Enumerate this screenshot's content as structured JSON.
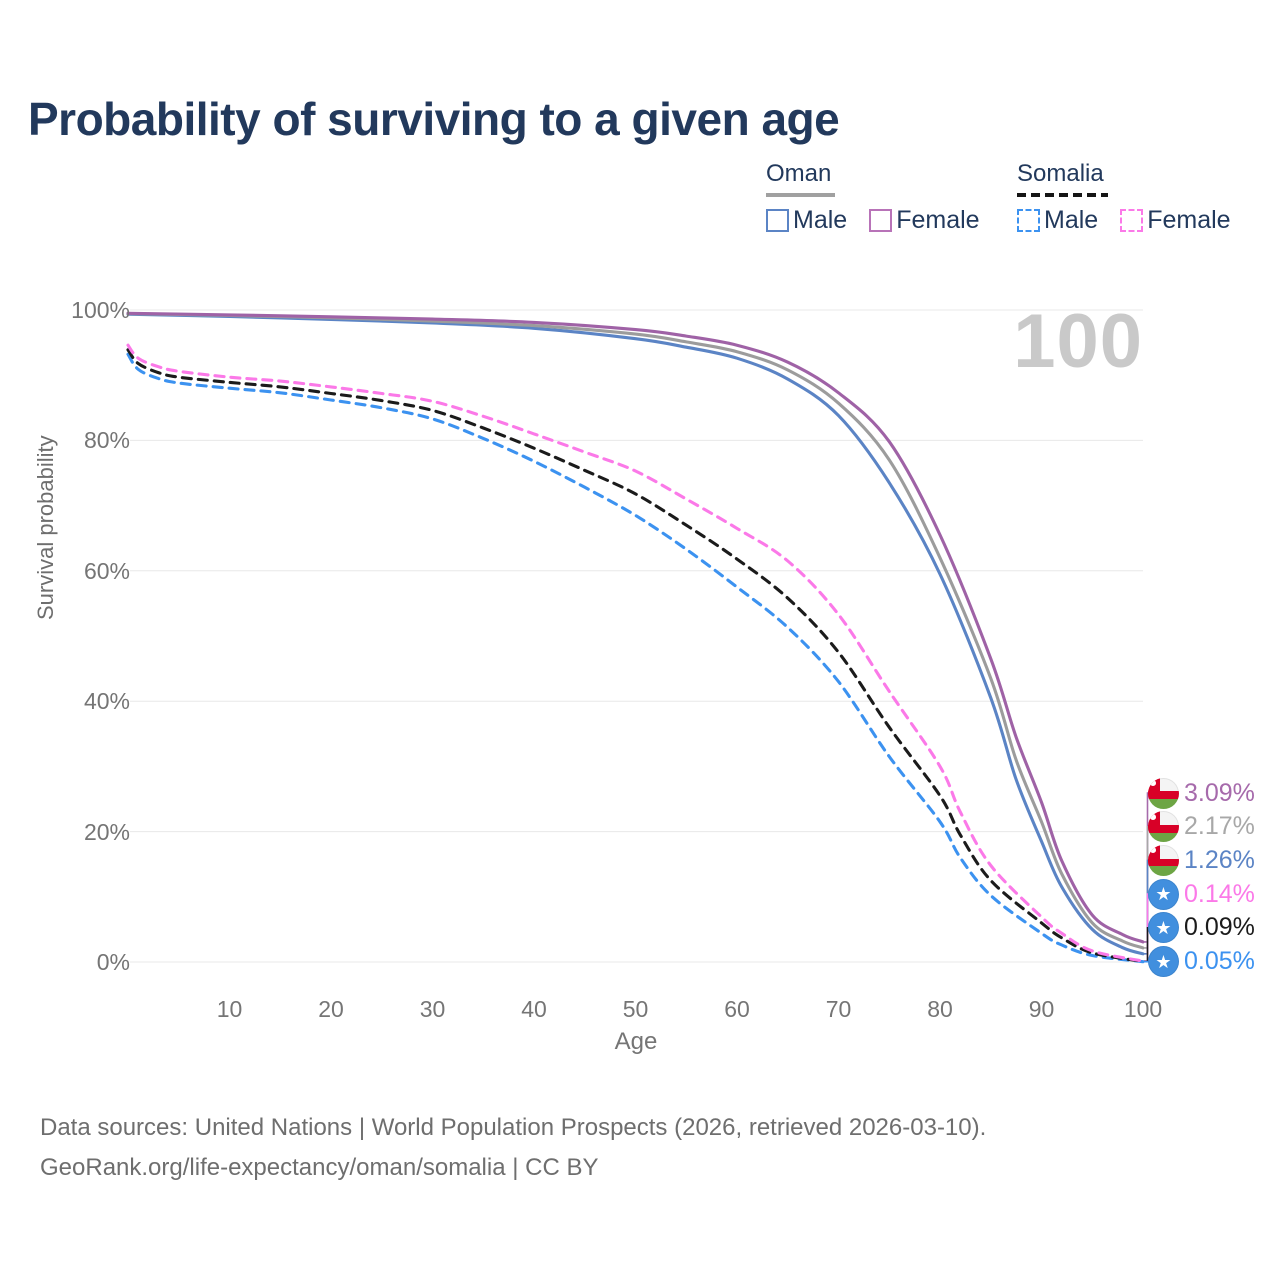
{
  "title": "Probability of surviving to a given age",
  "legend": {
    "groups": [
      {
        "name": "Oman",
        "line_style": "solid",
        "line_color": "#a0a0a0",
        "items": [
          {
            "label": "Male",
            "color": "#5b84c5",
            "style": "solid"
          },
          {
            "label": "Female",
            "color": "#b873b8",
            "style": "solid"
          }
        ]
      },
      {
        "name": "Somalia",
        "line_style": "dashed",
        "line_color": "#151515",
        "items": [
          {
            "label": "Male",
            "color": "#3c92f0",
            "style": "dashed"
          },
          {
            "label": "Female",
            "color": "#fb79e8",
            "style": "dashed"
          }
        ]
      }
    ]
  },
  "axes": {
    "y_title": "Survival probability",
    "x_title": "Age",
    "y_ticks": [
      "0%",
      "20%",
      "40%",
      "60%",
      "80%",
      "100%"
    ],
    "x_ticks": [
      10,
      20,
      30,
      40,
      50,
      60,
      70,
      80,
      90,
      100
    ]
  },
  "watermark": "100",
  "end_labels": [
    {
      "country": "oman",
      "flag": "oman-flag",
      "value": "3.09%",
      "color": "#a66aab",
      "series": "oman-female"
    },
    {
      "country": "oman",
      "flag": "oman-flag",
      "value": "2.17%",
      "color": "#a8a8a8",
      "series": "oman-total"
    },
    {
      "country": "oman",
      "flag": "oman-flag",
      "value": "1.26%",
      "color": "#5b84c5",
      "series": "oman-male"
    },
    {
      "country": "somalia",
      "flag": "somalia-flag",
      "value": "0.14%",
      "color": "#fb79e8",
      "series": "somalia-female"
    },
    {
      "country": "somalia",
      "flag": "somalia-flag",
      "value": "0.09%",
      "color": "#1b1b1b",
      "series": "somalia-total"
    },
    {
      "country": "somalia",
      "flag": "somalia-flag",
      "value": "0.05%",
      "color": "#3c92f0",
      "series": "somalia-male"
    }
  ],
  "footer": {
    "line1": "Data sources: United Nations | World Population Prospects (2026, retrieved 2026-03-10).",
    "line2": "GeoRank.org/life-expectancy/oman/somalia | CC BY"
  },
  "chart_data": {
    "type": "line",
    "title": "Probability of surviving to a given age",
    "xlabel": "Age",
    "ylabel": "Survival probability",
    "xlim": [
      0,
      100
    ],
    "ylim": [
      0,
      100
    ],
    "grid": "horizontal",
    "legend_position": "top-right",
    "y_unit": "%",
    "series": [
      {
        "name": "somalia-male",
        "country": "Somalia",
        "sex": "male",
        "style": "dashed",
        "color": "#3c92f0",
        "points": [
          [
            0,
            93.2
          ],
          [
            1,
            90.9
          ],
          [
            3,
            89.5
          ],
          [
            5,
            88.8
          ],
          [
            10,
            88.0
          ],
          [
            15,
            87.3
          ],
          [
            20,
            86.2
          ],
          [
            25,
            85.0
          ],
          [
            30,
            83.3
          ],
          [
            35,
            80.3
          ],
          [
            40,
            76.8
          ],
          [
            45,
            72.8
          ],
          [
            50,
            68.5
          ],
          [
            55,
            63.3
          ],
          [
            60,
            57.5
          ],
          [
            65,
            51.3
          ],
          [
            70,
            43.0
          ],
          [
            75,
            31.5
          ],
          [
            80,
            21.5
          ],
          [
            82,
            16.0
          ],
          [
            85,
            10.2
          ],
          [
            90,
            4.4
          ],
          [
            92,
            2.6
          ],
          [
            95,
            1.0
          ],
          [
            100,
            0.05
          ]
        ]
      },
      {
        "name": "somalia-total",
        "country": "Somalia",
        "sex": "both",
        "style": "dashed",
        "color": "#1b1b1b",
        "points": [
          [
            0,
            93.9
          ],
          [
            1,
            91.8
          ],
          [
            3,
            90.4
          ],
          [
            5,
            89.7
          ],
          [
            10,
            88.9
          ],
          [
            15,
            88.2
          ],
          [
            20,
            87.2
          ],
          [
            25,
            86.1
          ],
          [
            30,
            84.6
          ],
          [
            35,
            81.9
          ],
          [
            40,
            78.8
          ],
          [
            45,
            75.4
          ],
          [
            50,
            71.8
          ],
          [
            55,
            67.0
          ],
          [
            60,
            61.8
          ],
          [
            65,
            55.8
          ],
          [
            70,
            47.5
          ],
          [
            75,
            36.0
          ],
          [
            80,
            25.5
          ],
          [
            82,
            19.5
          ],
          [
            85,
            12.5
          ],
          [
            90,
            6.0
          ],
          [
            92,
            3.7
          ],
          [
            95,
            1.4
          ],
          [
            100,
            0.09
          ]
        ]
      },
      {
        "name": "somalia-female",
        "country": "Somalia",
        "sex": "female",
        "style": "dashed",
        "color": "#fb79e8",
        "points": [
          [
            0,
            94.6
          ],
          [
            1,
            92.6
          ],
          [
            3,
            91.3
          ],
          [
            5,
            90.6
          ],
          [
            10,
            89.7
          ],
          [
            15,
            89.1
          ],
          [
            20,
            88.2
          ],
          [
            25,
            87.2
          ],
          [
            30,
            86.0
          ],
          [
            35,
            83.7
          ],
          [
            40,
            81.0
          ],
          [
            45,
            78.2
          ],
          [
            50,
            75.3
          ],
          [
            55,
            71.0
          ],
          [
            60,
            66.5
          ],
          [
            65,
            61.5
          ],
          [
            70,
            53.3
          ],
          [
            75,
            41.5
          ],
          [
            80,
            30.0
          ],
          [
            82,
            23.0
          ],
          [
            85,
            14.8
          ],
          [
            90,
            6.9
          ],
          [
            92,
            4.4
          ],
          [
            95,
            1.7
          ],
          [
            100,
            0.14
          ]
        ]
      },
      {
        "name": "oman-male",
        "country": "Oman",
        "sex": "male",
        "style": "solid",
        "color": "#5b84c5",
        "points": [
          [
            0,
            99.35
          ],
          [
            10,
            99.0
          ],
          [
            20,
            98.55
          ],
          [
            30,
            98.0
          ],
          [
            40,
            97.2
          ],
          [
            50,
            95.6
          ],
          [
            55,
            94.3
          ],
          [
            60,
            92.6
          ],
          [
            65,
            89.4
          ],
          [
            70,
            83.8
          ],
          [
            75,
            73.5
          ],
          [
            80,
            59.5
          ],
          [
            85,
            40.5
          ],
          [
            87.5,
            28.0
          ],
          [
            90,
            18.5
          ],
          [
            92,
            11.5
          ],
          [
            95,
            5.0
          ],
          [
            98,
            2.2
          ],
          [
            100,
            1.26
          ]
        ]
      },
      {
        "name": "oman-total",
        "country": "Oman",
        "sex": "both",
        "style": "solid",
        "color": "#9c9c9c",
        "points": [
          [
            0,
            99.45
          ],
          [
            10,
            99.15
          ],
          [
            20,
            98.8
          ],
          [
            30,
            98.3
          ],
          [
            40,
            97.6
          ],
          [
            50,
            96.3
          ],
          [
            55,
            95.1
          ],
          [
            60,
            93.6
          ],
          [
            65,
            90.8
          ],
          [
            70,
            85.7
          ],
          [
            75,
            77.0
          ],
          [
            80,
            62.0
          ],
          [
            85,
            43.5
          ],
          [
            87.5,
            31.0
          ],
          [
            90,
            21.5
          ],
          [
            92,
            13.5
          ],
          [
            95,
            6.0
          ],
          [
            98,
            3.2
          ],
          [
            100,
            2.17
          ]
        ]
      },
      {
        "name": "oman-female",
        "country": "Oman",
        "sex": "female",
        "style": "solid",
        "color": "#9f62a6",
        "points": [
          [
            0,
            99.5
          ],
          [
            10,
            99.25
          ],
          [
            20,
            98.95
          ],
          [
            30,
            98.6
          ],
          [
            40,
            98.1
          ],
          [
            50,
            97.0
          ],
          [
            55,
            96.0
          ],
          [
            60,
            94.6
          ],
          [
            65,
            92.0
          ],
          [
            70,
            87.3
          ],
          [
            75,
            79.8
          ],
          [
            80,
            65.5
          ],
          [
            85,
            46.5
          ],
          [
            87.5,
            34.5
          ],
          [
            90,
            24.5
          ],
          [
            92,
            15.5
          ],
          [
            95,
            7.2
          ],
          [
            98,
            4.2
          ],
          [
            100,
            3.09
          ]
        ]
      }
    ]
  }
}
